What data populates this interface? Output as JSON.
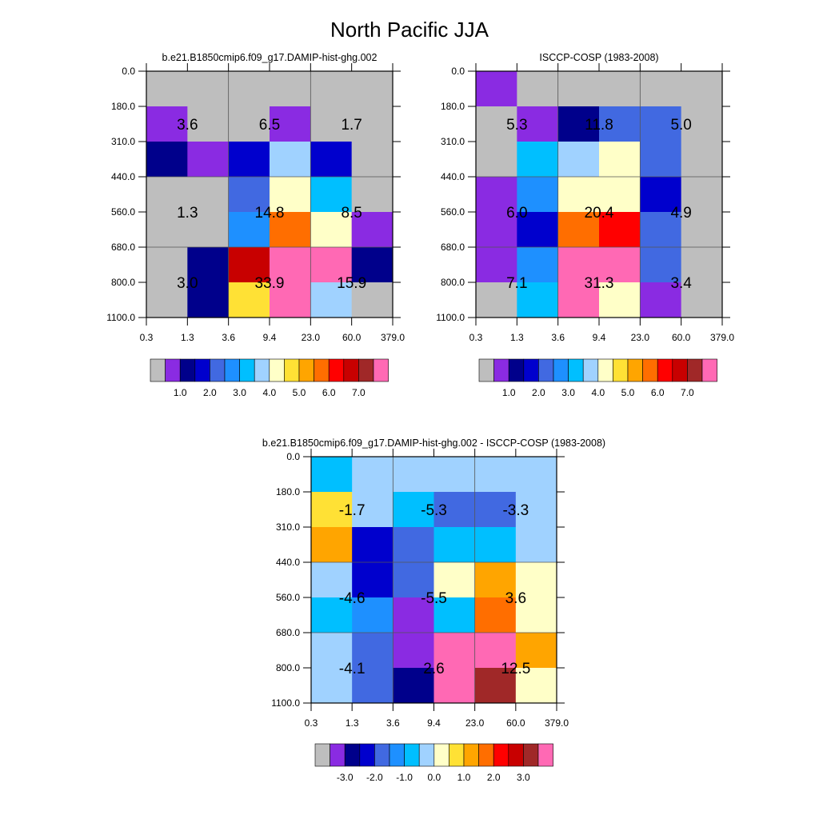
{
  "figure": {
    "title": "North Pacific JJA"
  },
  "chart_data": [
    {
      "type": "heatmap",
      "title": "b.e21.B1850cmip6.f09_g17.DAMIP-hist-ghg.002",
      "x_ticks": [
        "0.3",
        "1.3",
        "3.6",
        "9.4",
        "23.0",
        "60.0",
        "379.0"
      ],
      "y_ticks": [
        "0.0",
        "180.0",
        "310.0",
        "440.0",
        "560.0",
        "680.0",
        "800.0",
        "1100.0"
      ],
      "colorbar": {
        "colors": [
          "#BEBEBE",
          "#8A2BE2",
          "#00008B",
          "#0000CD",
          "#4169E1",
          "#1E90FF",
          "#00BFFF",
          "#A0D2FF",
          "#FFFFC8",
          "#FFE135",
          "#FFA500",
          "#FF6E00",
          "#FF0000",
          "#C80000",
          "#A02828",
          "#FF69B4"
        ],
        "labels": [
          "1.0",
          "2.0",
          "3.0",
          "4.0",
          "5.0",
          "6.0",
          "7.0"
        ]
      },
      "grid": [
        [
          "#BEBEBE",
          "#BEBEBE",
          "#BEBEBE",
          "#BEBEBE",
          "#BEBEBE",
          "#BEBEBE"
        ],
        [
          "#8A2BE2",
          "#BEBEBE",
          "#BEBEBE",
          "#8A2BE2",
          "#BEBEBE",
          "#BEBEBE"
        ],
        [
          "#00008B",
          "#8A2BE2",
          "#0000CD",
          "#A0D2FF",
          "#0000CD",
          "#BEBEBE"
        ],
        [
          "#BEBEBE",
          "#BEBEBE",
          "#4169E1",
          "#FFFFC8",
          "#00BFFF",
          "#BEBEBE"
        ],
        [
          "#BEBEBE",
          "#BEBEBE",
          "#1E90FF",
          "#FF6E00",
          "#FFFFC8",
          "#8A2BE2"
        ],
        [
          "#BEBEBE",
          "#00008B",
          "#C80000",
          "#FF69B4",
          "#FF69B4",
          "#00008B"
        ],
        [
          "#BEBEBE",
          "#00008B",
          "#FFE135",
          "#FF69B4",
          "#A0D2FF",
          "#BEBEBE"
        ]
      ],
      "annotations": [
        [
          "3.6",
          "6.5",
          "1.7"
        ],
        [
          "1.3",
          "14.8",
          "8.5"
        ],
        [
          "3.0",
          "33.9",
          "15.9"
        ]
      ]
    },
    {
      "type": "heatmap",
      "title": "ISCCP-COSP (1983-2008)",
      "x_ticks": [
        "0.3",
        "1.3",
        "3.6",
        "9.4",
        "23.0",
        "60.0",
        "379.0"
      ],
      "y_ticks": [
        "0.0",
        "180.0",
        "310.0",
        "440.0",
        "560.0",
        "680.0",
        "800.0",
        "1100.0"
      ],
      "colorbar": {
        "colors": [
          "#BEBEBE",
          "#8A2BE2",
          "#00008B",
          "#0000CD",
          "#4169E1",
          "#1E90FF",
          "#00BFFF",
          "#A0D2FF",
          "#FFFFC8",
          "#FFE135",
          "#FFA500",
          "#FF6E00",
          "#FF0000",
          "#C80000",
          "#A02828",
          "#FF69B4"
        ],
        "labels": [
          "1.0",
          "2.0",
          "3.0",
          "4.0",
          "5.0",
          "6.0",
          "7.0"
        ]
      },
      "grid": [
        [
          "#8A2BE2",
          "#BEBEBE",
          "#BEBEBE",
          "#BEBEBE",
          "#BEBEBE",
          "#BEBEBE"
        ],
        [
          "#BEBEBE",
          "#8A2BE2",
          "#00008B",
          "#4169E1",
          "#4169E1",
          "#BEBEBE"
        ],
        [
          "#BEBEBE",
          "#00BFFF",
          "#A0D2FF",
          "#FFFFC8",
          "#4169E1",
          "#BEBEBE"
        ],
        [
          "#8A2BE2",
          "#1E90FF",
          "#FFFFC8",
          "#FFFFC8",
          "#0000CD",
          "#BEBEBE"
        ],
        [
          "#8A2BE2",
          "#0000CD",
          "#FF6E00",
          "#FF0000",
          "#4169E1",
          "#BEBEBE"
        ],
        [
          "#8A2BE2",
          "#1E90FF",
          "#FF69B4",
          "#FF69B4",
          "#4169E1",
          "#BEBEBE"
        ],
        [
          "#BEBEBE",
          "#00BFFF",
          "#FF69B4",
          "#FFFFC8",
          "#8A2BE2",
          "#BEBEBE"
        ]
      ],
      "annotations": [
        [
          "5.3",
          "11.8",
          "5.0"
        ],
        [
          "6.0",
          "20.4",
          "4.9"
        ],
        [
          "7.1",
          "31.3",
          "3.4"
        ]
      ]
    },
    {
      "type": "heatmap",
      "title": "b.e21.B1850cmip6.f09_g17.DAMIP-hist-ghg.002 - ISCCP-COSP (1983-2008)",
      "x_ticks": [
        "0.3",
        "1.3",
        "3.6",
        "9.4",
        "23.0",
        "60.0",
        "379.0"
      ],
      "y_ticks": [
        "0.0",
        "180.0",
        "310.0",
        "440.0",
        "560.0",
        "680.0",
        "800.0",
        "1100.0"
      ],
      "colorbar": {
        "colors": [
          "#BEBEBE",
          "#8A2BE2",
          "#00008B",
          "#0000CD",
          "#4169E1",
          "#1E90FF",
          "#00BFFF",
          "#A0D2FF",
          "#FFFFC8",
          "#FFE135",
          "#FFA500",
          "#FF6E00",
          "#FF0000",
          "#C80000",
          "#A02828",
          "#FF69B4"
        ],
        "labels": [
          "-3.0",
          "-2.0",
          "-1.0",
          "0.0",
          "1.0",
          "2.0",
          "3.0"
        ]
      },
      "grid": [
        [
          "#00BFFF",
          "#A0D2FF",
          "#A0D2FF",
          "#A0D2FF",
          "#A0D2FF",
          "#A0D2FF"
        ],
        [
          "#FFE135",
          "#A0D2FF",
          "#00BFFF",
          "#4169E1",
          "#4169E1",
          "#A0D2FF"
        ],
        [
          "#FFA500",
          "#0000CD",
          "#4169E1",
          "#00BFFF",
          "#00BFFF",
          "#A0D2FF"
        ],
        [
          "#A0D2FF",
          "#0000CD",
          "#4169E1",
          "#FFFFC8",
          "#FFA500",
          "#FFFFC8"
        ],
        [
          "#00BFFF",
          "#1E90FF",
          "#8A2BE2",
          "#00BFFF",
          "#FF6E00",
          "#FFFFC8"
        ],
        [
          "#A0D2FF",
          "#4169E1",
          "#8A2BE2",
          "#FF69B4",
          "#FF69B4",
          "#FFA500"
        ],
        [
          "#A0D2FF",
          "#4169E1",
          "#00008B",
          "#FF69B4",
          "#A02828",
          "#FFFFC8"
        ]
      ],
      "annotations": [
        [
          "-1.7",
          "-5.3",
          "-3.3"
        ],
        [
          "-4.6",
          "-5.5",
          "3.6"
        ],
        [
          "-4.1",
          "2.6",
          "12.5"
        ]
      ]
    }
  ]
}
